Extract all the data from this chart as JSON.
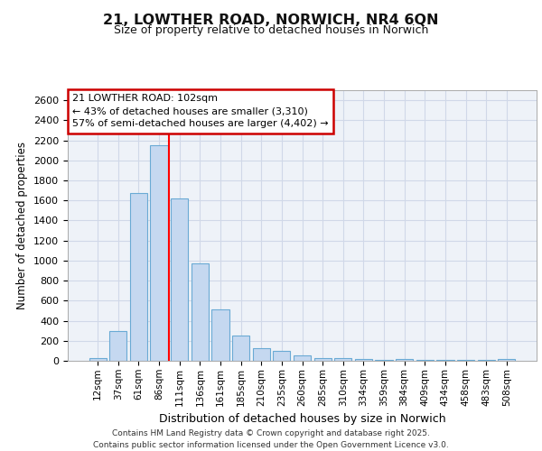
{
  "title1": "21, LOWTHER ROAD, NORWICH, NR4 6QN",
  "title2": "Size of property relative to detached houses in Norwich",
  "xlabel": "Distribution of detached houses by size in Norwich",
  "ylabel": "Number of detached properties",
  "categories": [
    "12sqm",
    "37sqm",
    "61sqm",
    "86sqm",
    "111sqm",
    "136sqm",
    "161sqm",
    "185sqm",
    "210sqm",
    "235sqm",
    "260sqm",
    "285sqm",
    "310sqm",
    "334sqm",
    "359sqm",
    "384sqm",
    "409sqm",
    "434sqm",
    "458sqm",
    "483sqm",
    "508sqm"
  ],
  "values": [
    25,
    300,
    1670,
    2150,
    1620,
    970,
    510,
    250,
    125,
    100,
    50,
    30,
    30,
    15,
    5,
    20,
    5,
    5,
    5,
    5,
    20
  ],
  "bar_color": "#c5d8f0",
  "bar_edge_color": "#6aaad4",
  "annotation_text_line1": "21 LOWTHER ROAD: 102sqm",
  "annotation_text_line2": "← 43% of detached houses are smaller (3,310)",
  "annotation_text_line3": "57% of semi-detached houses are larger (4,402) →",
  "annotation_box_color": "#ffffff",
  "annotation_box_edge_color": "#cc0000",
  "red_line_x": 3.5,
  "ylim": [
    0,
    2700
  ],
  "yticks": [
    0,
    200,
    400,
    600,
    800,
    1000,
    1200,
    1400,
    1600,
    1800,
    2000,
    2200,
    2400,
    2600
  ],
  "footer1": "Contains HM Land Registry data © Crown copyright and database right 2025.",
  "footer2": "Contains public sector information licensed under the Open Government Licence v3.0.",
  "bg_color": "#eef2f8",
  "grid_color": "#d0d8e8",
  "fig_bg_color": "#ffffff"
}
